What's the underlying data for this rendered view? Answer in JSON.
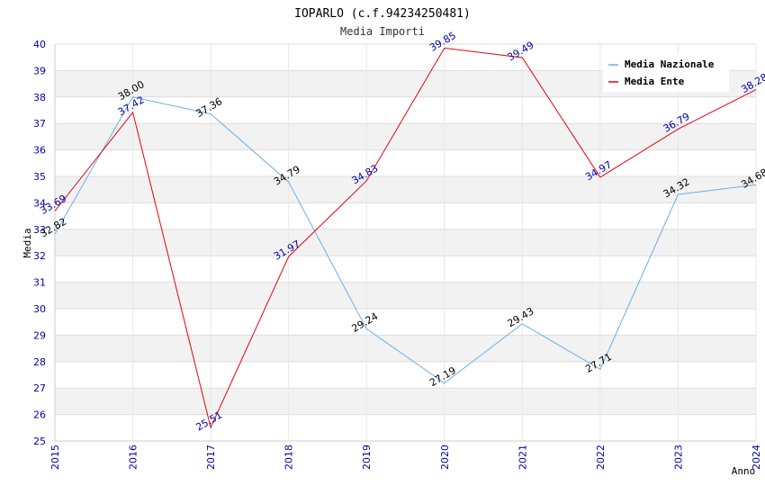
{
  "chart_data": {
    "type": "line",
    "title": "IOPARLO (c.f.94234250481)",
    "subtitle": "Media Importi",
    "xlabel": "Anno",
    "ylabel": "Media",
    "ylim": [
      25,
      40
    ],
    "yticks": [
      "25",
      "26",
      "27",
      "28",
      "29",
      "30",
      "31",
      "32",
      "33",
      "34",
      "35",
      "36",
      "37",
      "38",
      "39",
      "40"
    ],
    "categories": [
      "2015",
      "2016",
      "2017",
      "2018",
      "2019",
      "2020",
      "2021",
      "2022",
      "2023",
      "2024"
    ],
    "legend_position": "top-right",
    "series": [
      {
        "name": "Media Nazionale",
        "color": "#6aaee8",
        "values": [
          32.82,
          38.0,
          37.36,
          34.79,
          29.24,
          27.19,
          29.43,
          27.71,
          34.32,
          34.68
        ],
        "labels": [
          "32.82",
          "38.00",
          "37.36",
          "34.79",
          "29.24",
          "27.19",
          "29.43",
          "27.71",
          "34.32",
          "34.68"
        ]
      },
      {
        "name": "Media Ente",
        "color": "#e8000d",
        "values": [
          33.69,
          37.42,
          25.51,
          31.97,
          34.83,
          39.85,
          39.49,
          34.97,
          36.79,
          38.28
        ],
        "labels": [
          "33.69",
          "37.42",
          "25.51",
          "31.97",
          "34.83",
          "39.85",
          "39.49",
          "34.97",
          "36.79",
          "38.28"
        ]
      }
    ]
  }
}
